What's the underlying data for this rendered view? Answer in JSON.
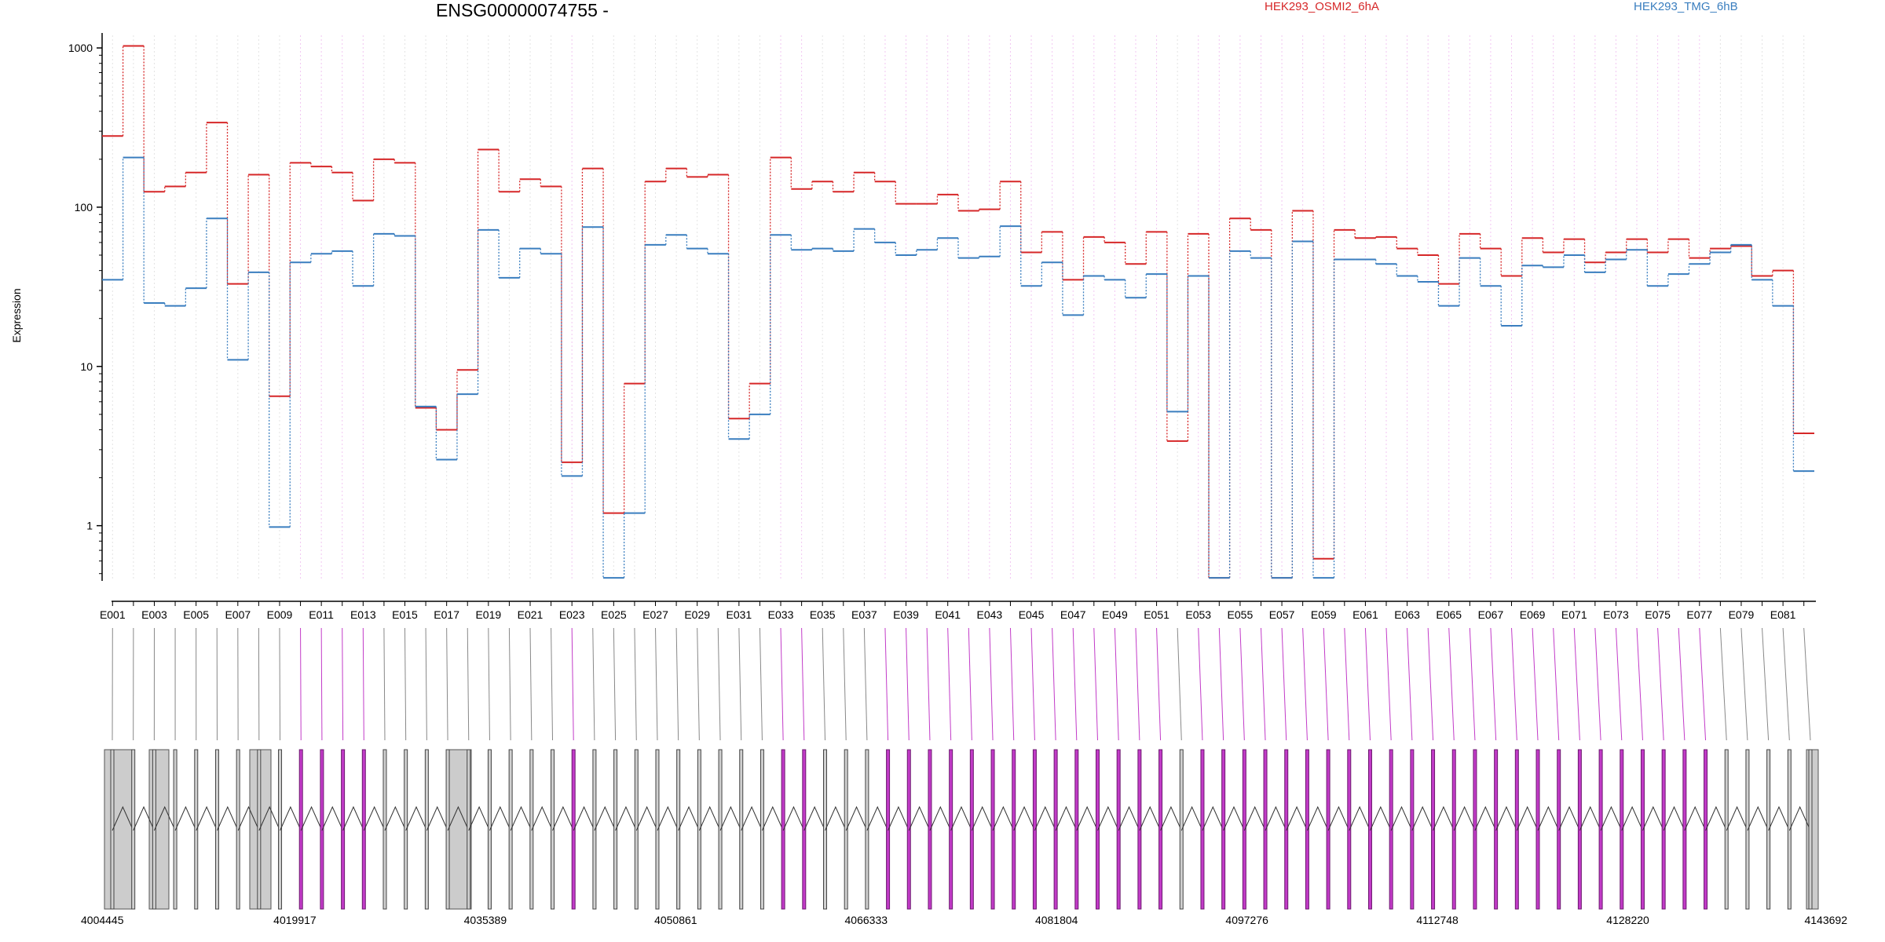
{
  "chart_data": {
    "type": "line",
    "title": "ENSG00000074755 -",
    "ylabel": "Expression",
    "xlabel": "",
    "y_scale": "log",
    "ylim": [
      0.45,
      1200
    ],
    "y_ticks": [
      "1000",
      "100",
      "10",
      "1"
    ],
    "legend_placement": "top",
    "grid": "vertical dotted lines per exon",
    "categories": [
      "E001",
      "E002",
      "E003",
      "E004",
      "E005",
      "E006",
      "E007",
      "E008",
      "E009",
      "E010",
      "E011",
      "E012",
      "E013",
      "E014",
      "E015",
      "E016",
      "E017",
      "E018",
      "E019",
      "E020",
      "E021",
      "E022",
      "E023",
      "E024",
      "E025",
      "E026",
      "E027",
      "E028",
      "E029",
      "E030",
      "E031",
      "E032",
      "E033",
      "E034",
      "E035",
      "E036",
      "E037",
      "E038",
      "E039",
      "E040",
      "E041",
      "E042",
      "E043",
      "E044",
      "E045",
      "E046",
      "E047",
      "E048",
      "E049",
      "E050",
      "E051",
      "E052",
      "E053",
      "E054",
      "E055",
      "E056",
      "E057",
      "E058",
      "E059",
      "E060",
      "E061",
      "E062",
      "E063",
      "E064",
      "E065",
      "E066",
      "E067",
      "E068",
      "E069",
      "E070",
      "E071",
      "E072",
      "E073",
      "E074",
      "E075",
      "E076",
      "E077",
      "E078",
      "E079",
      "E080",
      "E081",
      "E082"
    ],
    "x_tick_labels": [
      "E001",
      "E003",
      "E005",
      "E007",
      "E009",
      "E011",
      "E013",
      "E015",
      "E017",
      "E019",
      "E021",
      "E023",
      "E025",
      "E027",
      "E029",
      "E031",
      "E033",
      "E035",
      "E037",
      "E039",
      "E041",
      "E043",
      "E045",
      "E047",
      "E049",
      "E051",
      "E053",
      "E055",
      "E057",
      "E059",
      "E061",
      "E063",
      "E065",
      "E067",
      "E069",
      "E071",
      "E073",
      "E075",
      "E077",
      "E079",
      "E081"
    ],
    "series": [
      {
        "name": "HEK293_OSMI2_6hA",
        "color": "#d62728",
        "values": [
          280,
          1030,
          125,
          135,
          165,
          340,
          33,
          160,
          6.5,
          190,
          180,
          165,
          110,
          200,
          190,
          5.5,
          4,
          9.5,
          230,
          125,
          150,
          135,
          2.5,
          175,
          1.2,
          7.8,
          145,
          175,
          155,
          160,
          4.7,
          7.8,
          205,
          130,
          145,
          125,
          165,
          145,
          105,
          105,
          120,
          95,
          97,
          145,
          52,
          70,
          35,
          65,
          60,
          44,
          70,
          3.4,
          68,
          0.47,
          85,
          72,
          0.47,
          95,
          0.62,
          72,
          64,
          65,
          55,
          50,
          33,
          68,
          55,
          37,
          64,
          52,
          63,
          45,
          52,
          63,
          52,
          63,
          48,
          55,
          57,
          37,
          40,
          3.8
        ]
      },
      {
        "name": "HEK293_TMG_6hB",
        "color": "#3a7ebf",
        "values": [
          35,
          205,
          25,
          24,
          31,
          85,
          11,
          39,
          0.98,
          45,
          51,
          53,
          32,
          68,
          66,
          5.6,
          2.6,
          6.7,
          72,
          36,
          55,
          51,
          2.05,
          75,
          0.47,
          1.2,
          58,
          67,
          55,
          51,
          3.5,
          5,
          67,
          54,
          55,
          53,
          73,
          60,
          50,
          54,
          64,
          48,
          49,
          76,
          32,
          45,
          21,
          37,
          35,
          27,
          38,
          5.2,
          37,
          0.47,
          53,
          48,
          0.47,
          61,
          0.47,
          47,
          47,
          44,
          37,
          34,
          24,
          48,
          32,
          18,
          43,
          42,
          50,
          39,
          47,
          54,
          32,
          38,
          44,
          52,
          58,
          35,
          24,
          2.2
        ]
      }
    ],
    "gene_model": {
      "genomic_ticks": [
        "4004445",
        "4019917",
        "4035389",
        "4050861",
        "4066333",
        "4081804",
        "4097276",
        "4112748",
        "4128220",
        "4143692"
      ],
      "highlight_color": "#c23bc8",
      "default_color": "#cccccc",
      "highlighted_exons": [
        "E010",
        "E011",
        "E012",
        "E013",
        "E023",
        "E033",
        "E034",
        "E038",
        "E039",
        "E040",
        "E041",
        "E042",
        "E043",
        "E044",
        "E045",
        "E046",
        "E047",
        "E048",
        "E049",
        "E050",
        "E051",
        "E053",
        "E054",
        "E055",
        "E056",
        "E057",
        "E058",
        "E059",
        "E060",
        "E061",
        "E062",
        "E063",
        "E064",
        "E065",
        "E066",
        "E067",
        "E068",
        "E069",
        "E070",
        "E071",
        "E072",
        "E073",
        "E074",
        "E075",
        "E076",
        "E077"
      ]
    }
  }
}
